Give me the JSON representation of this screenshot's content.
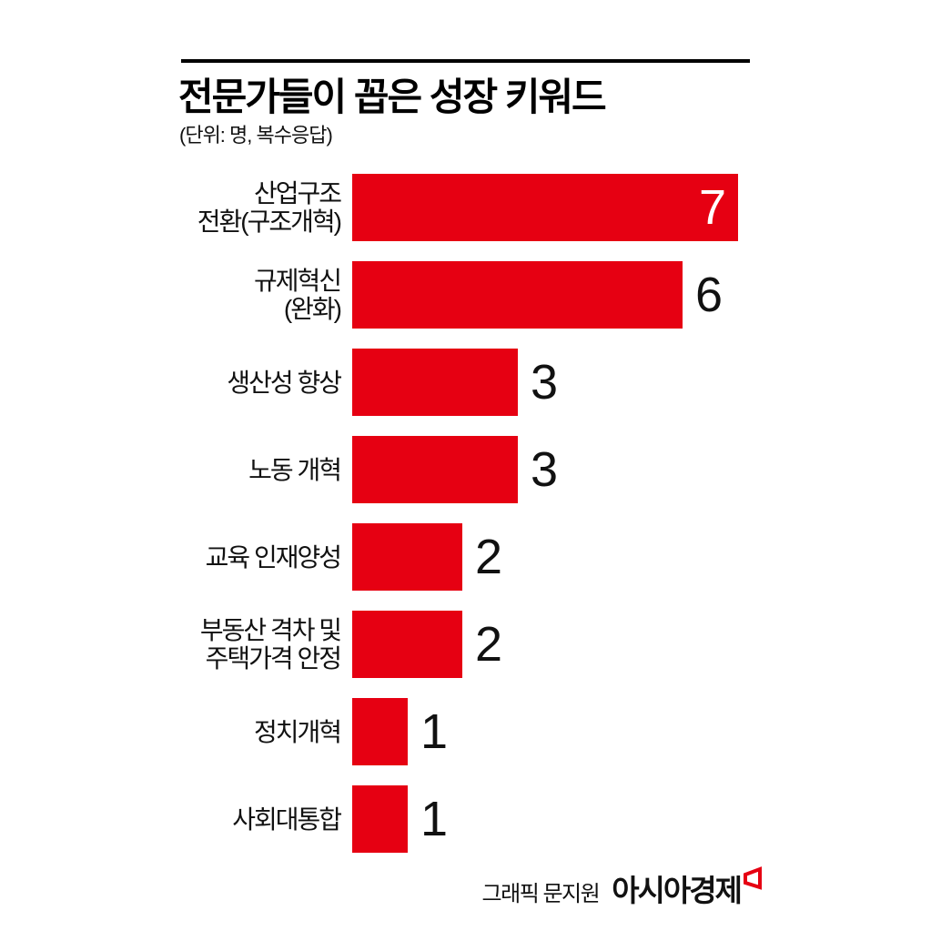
{
  "header": {
    "title": "전문가들이 꼽은 성장 키워드",
    "unit_note": "(단위: 명, 복수응답)"
  },
  "chart_data": {
    "type": "bar",
    "orientation": "horizontal",
    "title": "전문가들이 꼽은 성장 키워드",
    "unit_label": "(단위: 명, 복수응답)",
    "categories": [
      "산업구조 전환(구조개혁)",
      "규제혁신 (완화)",
      "생산성 향상",
      "노동 개혁",
      "교육 인재양성",
      "부동산 격차 및 주택가격 안정",
      "정치개혁",
      "사회대통합"
    ],
    "values": [
      7,
      6,
      3,
      3,
      2,
      2,
      1,
      1
    ],
    "xlim": [
      0,
      7
    ],
    "grid": false,
    "legend": false,
    "bar_color": "#e60012",
    "value_label_color_inside": "#ffffff",
    "value_label_color_outside": "#111111",
    "rows": [
      {
        "label_lines": [
          "산업구조",
          "전환(구조개혁)"
        ],
        "value": 7,
        "value_position": "inside"
      },
      {
        "label_lines": [
          "규제혁신",
          "(완화)"
        ],
        "value": 6,
        "value_position": "outside"
      },
      {
        "label_lines": [
          "생산성 향상"
        ],
        "value": 3,
        "value_position": "outside"
      },
      {
        "label_lines": [
          "노동 개혁"
        ],
        "value": 3,
        "value_position": "outside"
      },
      {
        "label_lines": [
          "교육 인재양성"
        ],
        "value": 2,
        "value_position": "outside"
      },
      {
        "label_lines": [
          "부동산 격차 및",
          "주택가격 안정"
        ],
        "value": 2,
        "value_position": "outside"
      },
      {
        "label_lines": [
          "정치개혁"
        ],
        "value": 1,
        "value_position": "outside"
      },
      {
        "label_lines": [
          "사회대통합"
        ],
        "value": 1,
        "value_position": "outside"
      }
    ]
  },
  "footer": {
    "credit": "그래픽 문지원",
    "brand": "아시아경제",
    "logo_color": "#e60012"
  }
}
